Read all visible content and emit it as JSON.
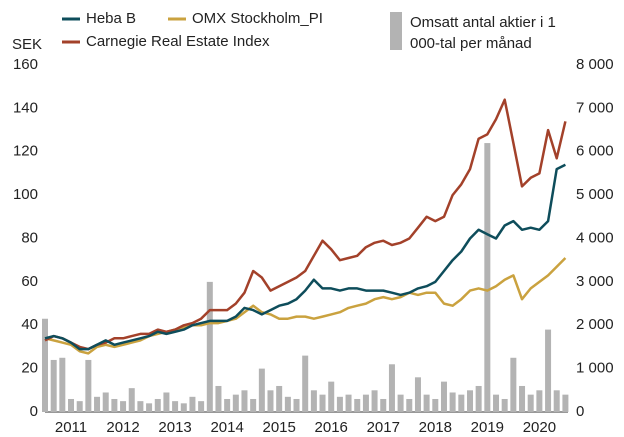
{
  "chart_data": {
    "type": "line",
    "y_label": "SEK",
    "legend": "top",
    "grid": false,
    "xlim": [
      2011,
      2021.05
    ],
    "xticks": [
      {
        "value": 2011.5,
        "label": "2011"
      },
      {
        "value": 2012.5,
        "label": "2012"
      },
      {
        "value": 2013.5,
        "label": "2013"
      },
      {
        "value": 2014.5,
        "label": "2014"
      },
      {
        "value": 2015.5,
        "label": "2015"
      },
      {
        "value": 2016.5,
        "label": "2016"
      },
      {
        "value": 2017.5,
        "label": "2017"
      },
      {
        "value": 2018.5,
        "label": "2018"
      },
      {
        "value": 2019.5,
        "label": "2019"
      },
      {
        "value": 2020.5,
        "label": "2020"
      }
    ],
    "ylim": [
      0,
      160
    ],
    "yticks": [
      0,
      20,
      40,
      60,
      80,
      100,
      120,
      140,
      160
    ],
    "y2lim": [
      0,
      8000
    ],
    "y2ticks": [
      0,
      {
        "value": 1000,
        "label": "1 000"
      },
      {
        "value": 2000,
        "label": "2 000"
      },
      {
        "value": 3000,
        "label": "3 000"
      },
      {
        "value": 4000,
        "label": "4 000"
      },
      {
        "value": 5000,
        "label": "5 000"
      },
      {
        "value": 6000,
        "label": "6 000"
      },
      {
        "value": 7000,
        "label": "7 000"
      },
      {
        "value": 8000,
        "label": "8 000"
      }
    ],
    "x": [
      2011,
      2011.167,
      2011.333,
      2011.5,
      2011.667,
      2011.833,
      2012,
      2012.167,
      2012.333,
      2012.5,
      2012.667,
      2012.833,
      2013,
      2013.167,
      2013.333,
      2013.5,
      2013.667,
      2013.833,
      2014,
      2014.167,
      2014.333,
      2014.5,
      2014.667,
      2014.833,
      2015,
      2015.167,
      2015.333,
      2015.5,
      2015.667,
      2015.833,
      2016,
      2016.167,
      2016.333,
      2016.5,
      2016.667,
      2016.833,
      2017,
      2017.167,
      2017.333,
      2017.5,
      2017.667,
      2017.833,
      2018,
      2018.167,
      2018.333,
      2018.5,
      2018.667,
      2018.833,
      2019,
      2019.167,
      2019.333,
      2019.5,
      2019.667,
      2019.833,
      2020,
      2020.167,
      2020.333,
      2020.5,
      2020.667,
      2020.833,
      2021
    ],
    "series": [
      {
        "name": "Omsatt antal aktier i 1 000-tal per månad",
        "type": "bar",
        "axis": "y2",
        "color": "#b3b3b3",
        "values": [
          2150,
          1200,
          1250,
          300,
          250,
          1200,
          350,
          450,
          300,
          250,
          550,
          250,
          200,
          300,
          450,
          250,
          200,
          350,
          250,
          3000,
          600,
          300,
          400,
          500,
          300,
          1000,
          500,
          600,
          350,
          300,
          1300,
          500,
          400,
          700,
          350,
          400,
          300,
          400,
          500,
          300,
          1100,
          400,
          300,
          800,
          400,
          300,
          700,
          450,
          400,
          500,
          600,
          6200,
          400,
          300,
          1250,
          600,
          400,
          500,
          1900,
          500,
          400
        ]
      },
      {
        "name": "OMX Stockholm_PI",
        "type": "line",
        "color": "#caa23f",
        "values": [
          34,
          33,
          32,
          31,
          28,
          27,
          30,
          31,
          30,
          31,
          32,
          33,
          35,
          36,
          37,
          38,
          39,
          40,
          40,
          41,
          41,
          42,
          43,
          46,
          49,
          46,
          45,
          43,
          43,
          44,
          44,
          43,
          44,
          45,
          46,
          48,
          49,
          50,
          52,
          53,
          52,
          53,
          55,
          54,
          55,
          55,
          50,
          49,
          52,
          56,
          57,
          56,
          58,
          61,
          63,
          52,
          57,
          60,
          63,
          67,
          71
        ]
      },
      {
        "name": "Carnegie Real Estate Index",
        "type": "line",
        "color": "#a3412a",
        "values": [
          33,
          35,
          34,
          32,
          30,
          29,
          31,
          32,
          34,
          34,
          35,
          36,
          36,
          38,
          37,
          38,
          40,
          41,
          43,
          47,
          47,
          47,
          50,
          55,
          65,
          62,
          56,
          58,
          60,
          62,
          65,
          72,
          79,
          75,
          70,
          71,
          72,
          76,
          78,
          79,
          77,
          78,
          80,
          85,
          90,
          88,
          90,
          100,
          105,
          112,
          126,
          128,
          135,
          144,
          124,
          104,
          108,
          110,
          130,
          117,
          134
        ]
      },
      {
        "name": "Heba B",
        "type": "line",
        "color": "#0e4d5b",
        "values": [
          34,
          35,
          34,
          32,
          29,
          29,
          31,
          33,
          31,
          32,
          33,
          34,
          35,
          37,
          36,
          37,
          38,
          40,
          41,
          42,
          42,
          42,
          44,
          48,
          47,
          45,
          47,
          49,
          50,
          52,
          56,
          61,
          57,
          57,
          56,
          57,
          57,
          56,
          56,
          56,
          55,
          54,
          55,
          57,
          58,
          60,
          65,
          70,
          74,
          80,
          84,
          82,
          80,
          86,
          88,
          84,
          85,
          84,
          88,
          112,
          114
        ]
      }
    ]
  }
}
